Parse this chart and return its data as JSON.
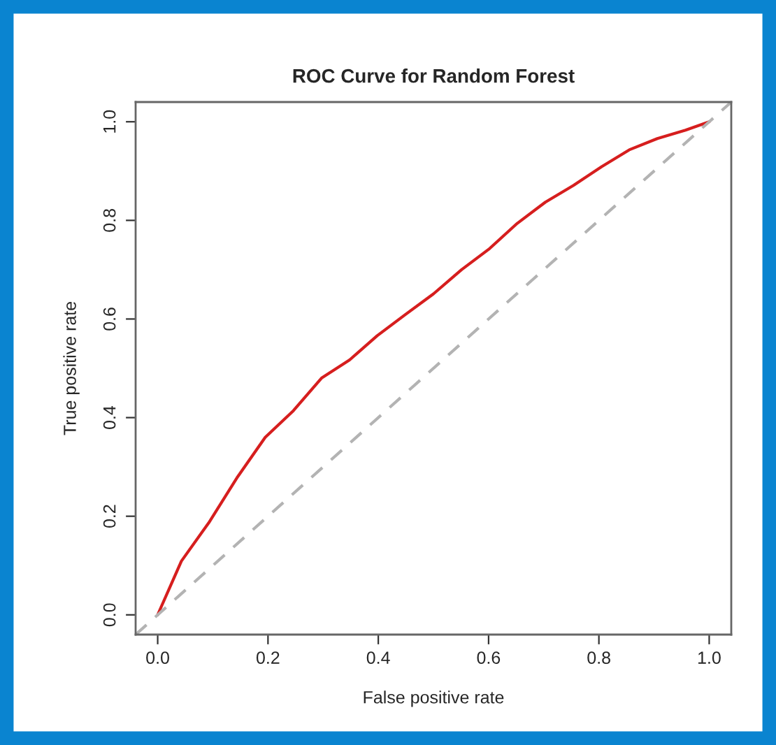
{
  "chart_data": {
    "type": "line",
    "title": "ROC Curve for Random Forest",
    "xlabel": "False positive rate",
    "ylabel": "True positive rate",
    "xlim": [
      -0.04,
      1.04
    ],
    "ylim": [
      -0.04,
      1.04
    ],
    "xticks": [
      {
        "value": 0,
        "label": "0.0"
      },
      0.2,
      0.4,
      0.6,
      0.8,
      {
        "value": 1,
        "label": "1.0"
      }
    ],
    "yticks": [
      {
        "value": 0,
        "label": "0.0"
      },
      0.2,
      0.4,
      0.6,
      0.8,
      {
        "value": 1,
        "label": "1.0"
      }
    ],
    "grid": false,
    "legend": false,
    "series": [
      {
        "color": "#d61e1e",
        "line_style": "solid",
        "x": [
          0,
          0.043,
          0.094,
          0.145,
          0.195,
          0.246,
          0.297,
          0.348,
          0.398,
          0.449,
          0.5,
          0.551,
          0.602,
          0.652,
          0.703,
          0.754,
          0.805,
          0.855,
          0.906,
          0.957,
          1.0
        ],
        "values": [
          0,
          0.109,
          0.189,
          0.28,
          0.36,
          0.414,
          0.48,
          0.517,
          0.566,
          0.609,
          0.651,
          0.7,
          0.743,
          0.794,
          0.837,
          0.871,
          0.909,
          0.943,
          0.966,
          0.983,
          1.0
        ]
      },
      {
        "color": "#b3b3b3",
        "line_style": "dashed",
        "x": [
          -0.04,
          1.04
        ],
        "values": [
          -0.04,
          1.04
        ]
      }
    ]
  }
}
